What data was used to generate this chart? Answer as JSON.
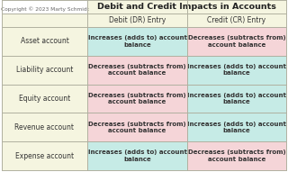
{
  "title": "Debit and Credit Impacts in Accounts",
  "copyright": "Copyright © 2023 Marty Schmidt",
  "col_headers": [
    "Debit (DR) Entry",
    "Credit (CR) Entry"
  ],
  "rows": [
    {
      "label": "Asset account",
      "debit": "Increases (adds to) account\nbalance",
      "credit": "Decreases (subtracts from)\naccount balance",
      "debit_color": "#c6ebe6",
      "credit_color": "#f5d5d8"
    },
    {
      "label": "Liability account",
      "debit": "Decreases (subtracts from)\naccount balance",
      "credit": "Increases (adds to) account\nbalance",
      "debit_color": "#f5d5d8",
      "credit_color": "#c6ebe6"
    },
    {
      "label": "Equity account",
      "debit": "Decreases (subtracts from)\naccount balance",
      "credit": "Increases (adds to) account\nbalance",
      "debit_color": "#f5d5d8",
      "credit_color": "#c6ebe6"
    },
    {
      "label": "Revenue account",
      "debit": "Decreases (subtracts from)\naccount balance",
      "credit": "Increases (adds to) account\nbalance",
      "debit_color": "#f5d5d8",
      "credit_color": "#c6ebe6"
    },
    {
      "label": "Expense account",
      "debit": "Increases (adds to) account\nbalance",
      "credit": "Decreases (subtracts from)\naccount balance",
      "debit_color": "#c6ebe6",
      "credit_color": "#f5d5d8"
    }
  ],
  "header_bg": "#f5f5e0",
  "label_bg": "#f5f5e0",
  "border_color": "#b0b0a0",
  "title_fontsize": 6.8,
  "header_fontsize": 5.5,
  "cell_fontsize": 5.0,
  "label_fontsize": 5.5,
  "copyright_fontsize": 4.2
}
